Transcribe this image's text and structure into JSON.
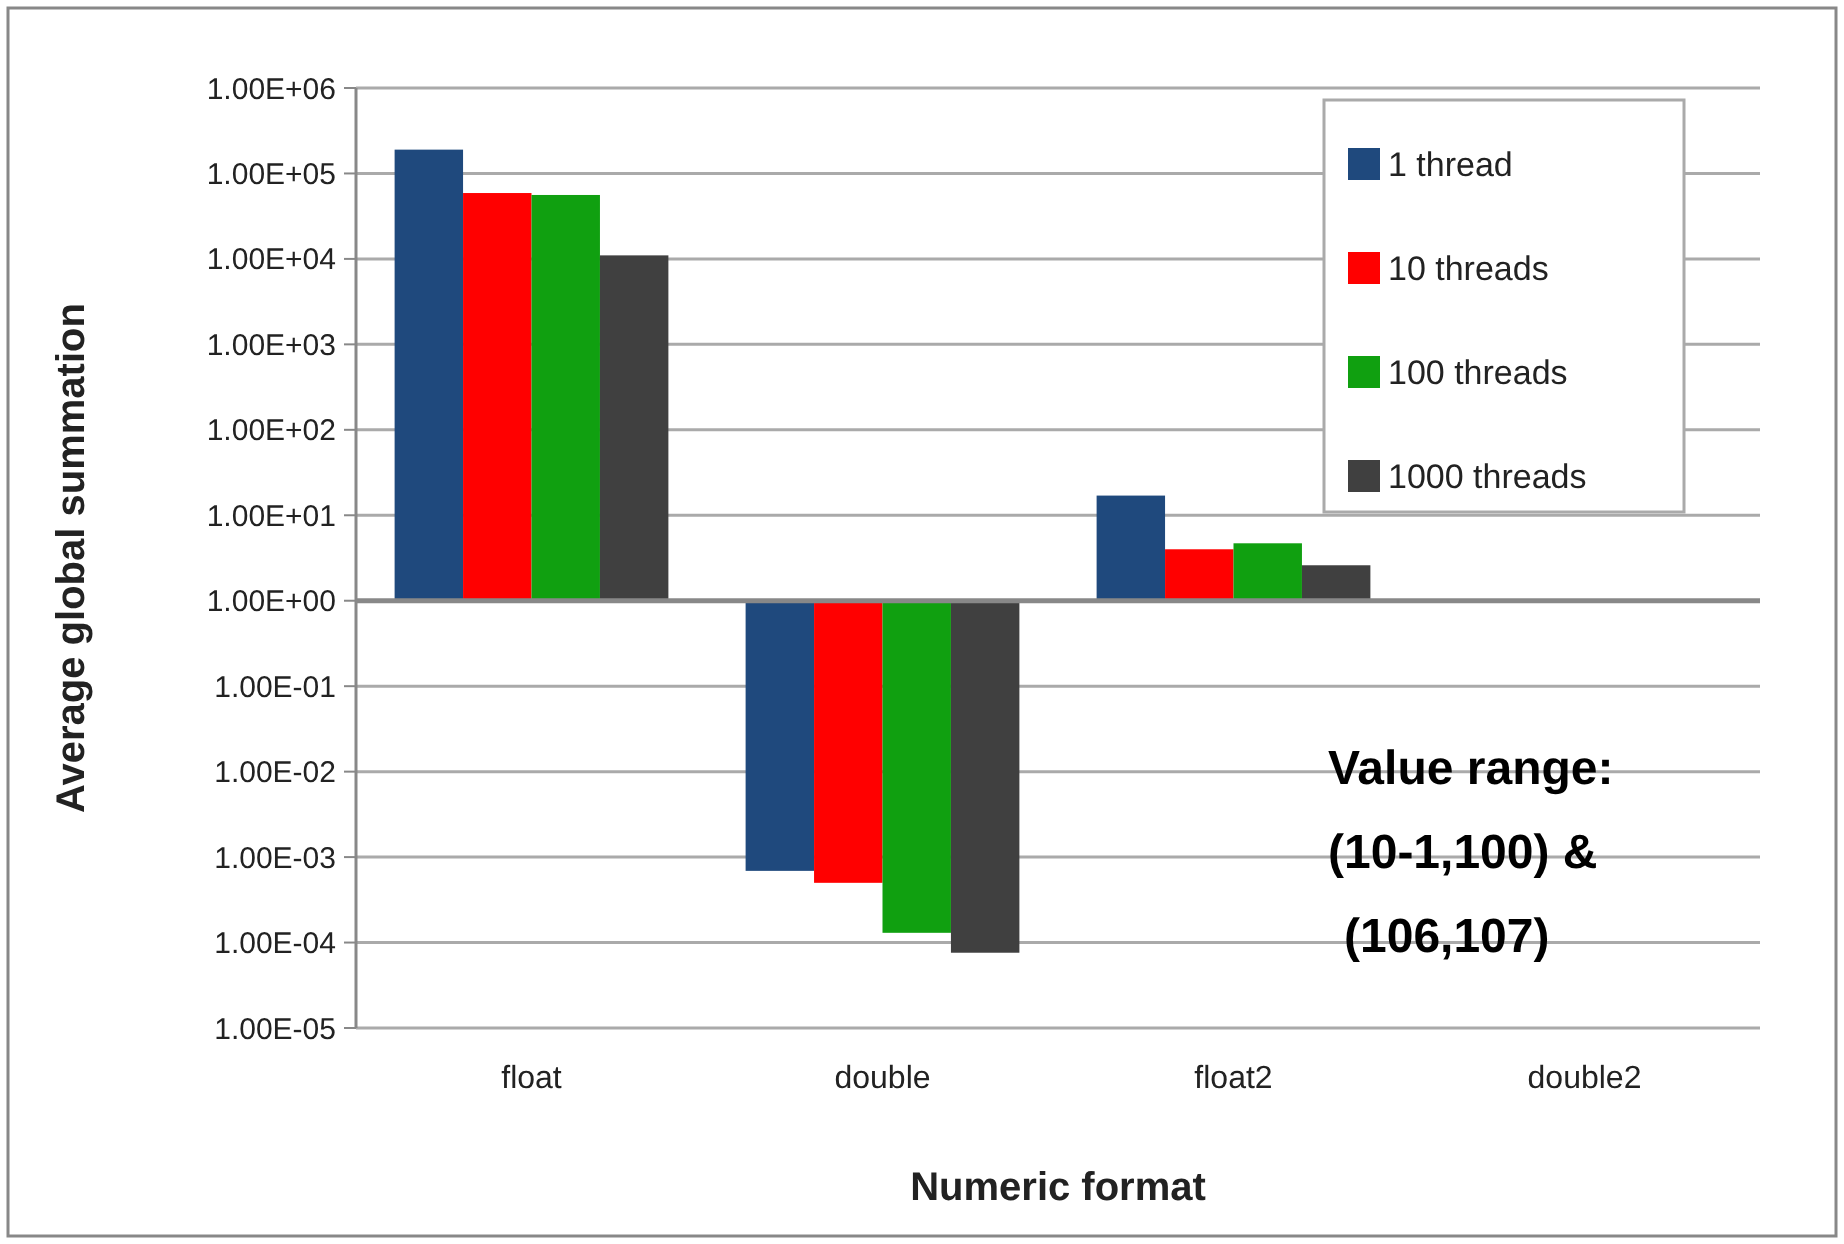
{
  "chart_data": {
    "type": "bar",
    "xlabel": "Numeric format",
    "ylabel": "Average global summation",
    "categories": [
      "float",
      "double",
      "float2",
      "double2"
    ],
    "series": [
      {
        "name": "1 thread",
        "color": "#1f497d",
        "base": [
          1,
          1,
          1,
          null
        ],
        "values": [
          189999,
          -0.99931,
          16,
          null
        ]
      },
      {
        "name": "10 threads",
        "color": "#ff0000",
        "base": [
          1,
          1,
          1,
          null
        ],
        "values": [
          58999,
          -0.9995,
          3,
          null
        ]
      },
      {
        "name": "100 threads",
        "color": "#10a010",
        "base": [
          1,
          1,
          1,
          null
        ],
        "values": [
          55999,
          -0.99987,
          3.7,
          null
        ]
      },
      {
        "name": "1000 threads",
        "color": "#404040",
        "base": [
          1,
          1,
          1,
          null
        ],
        "values": [
          10999,
          -0.999924,
          1.6,
          null
        ]
      }
    ],
    "ref_lines": [
      {
        "axis": "y",
        "value": 1,
        "color": "#888888"
      }
    ],
    "log": true,
    "ylim": [
      1e-05,
      1000000
    ],
    "yticks": [
      {
        "value": 1e-05,
        "label": "1.00E-05"
      },
      {
        "value": 0.0001,
        "label": "1.00E-04"
      },
      {
        "value": 0.001,
        "label": "1.00E-03"
      },
      {
        "value": 0.01,
        "label": "1.00E-02"
      },
      {
        "value": 0.1,
        "label": "1.00E-01"
      },
      {
        "value": 1,
        "label": "1.00E+00"
      },
      {
        "value": 10,
        "label": "1.00E+01"
      },
      {
        "value": 100,
        "label": "1.00E+02"
      },
      {
        "value": 1000,
        "label": "1.00E+03"
      },
      {
        "value": 10000,
        "label": "1.00E+04"
      },
      {
        "value": 100000,
        "label": "1.00E+05"
      },
      {
        "value": 1000000,
        "label": "1.00E+06"
      }
    ],
    "grid": "y",
    "legend": "top right",
    "annotations": [
      "Value range:",
      "(10-1,100) &",
      "(106,107)"
    ]
  }
}
